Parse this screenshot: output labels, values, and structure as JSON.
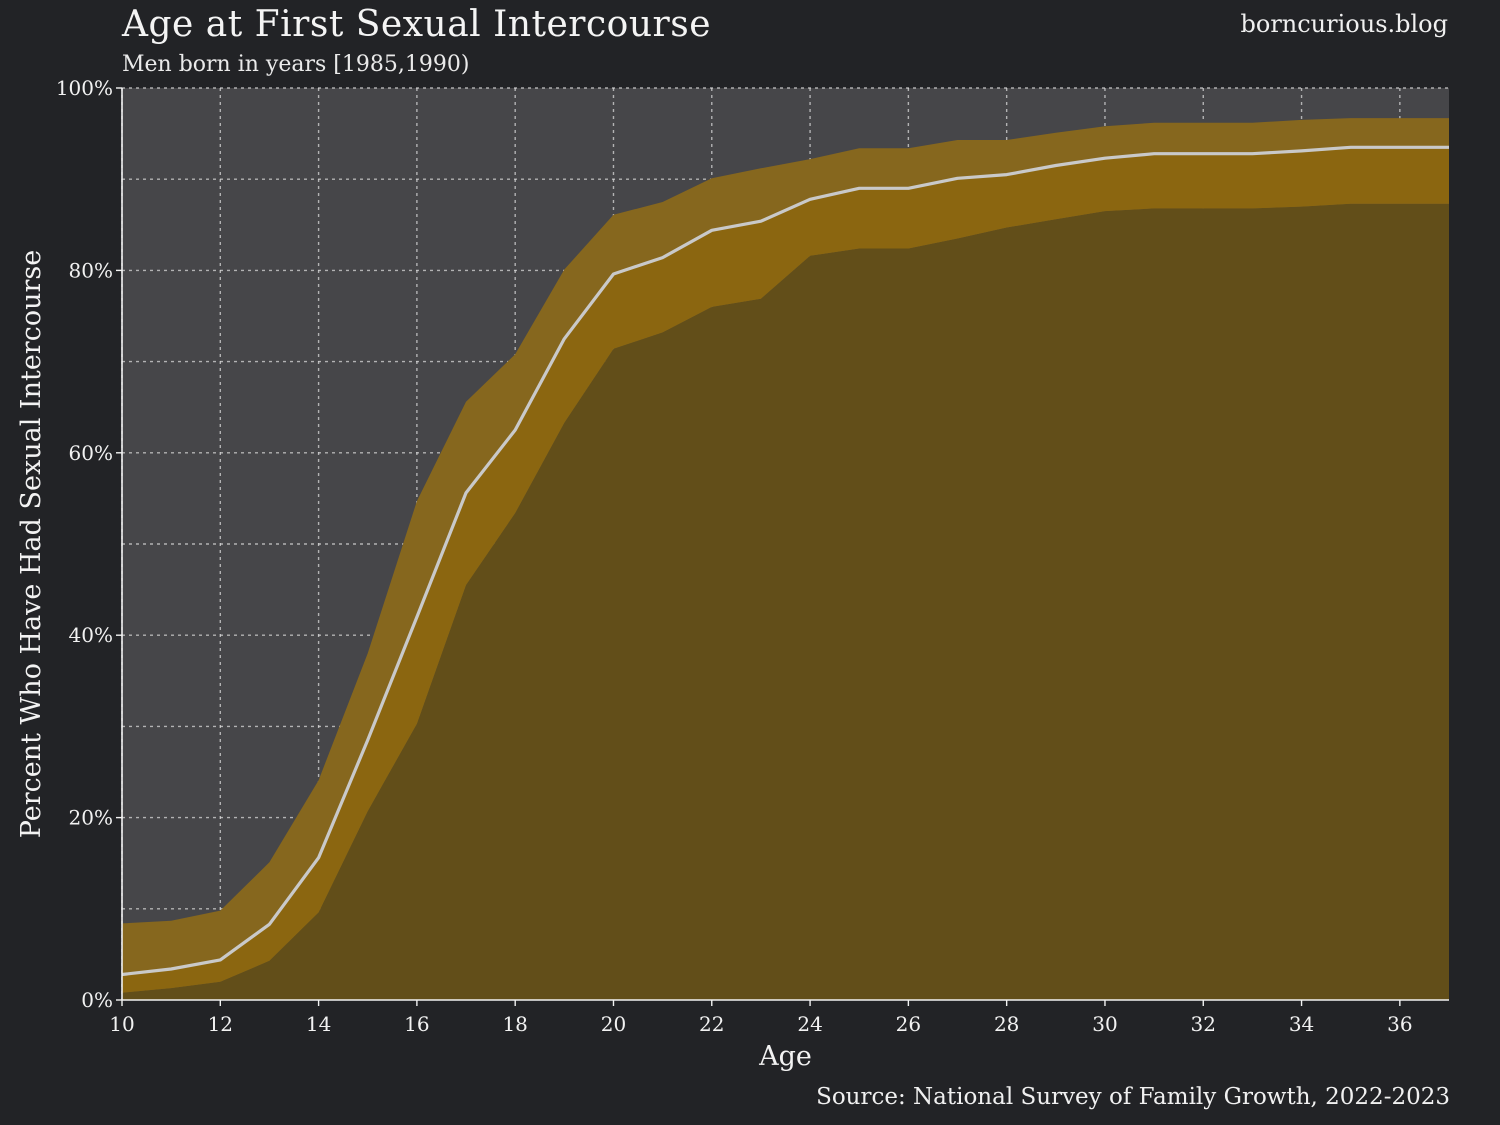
{
  "header": {
    "title": "Age at First Sexual Intercourse",
    "subtitle": "Men born in years [1985,1990)",
    "brand": "borncurious.blog",
    "source": "Source: National Survey of Family Growth, 2022-2023"
  },
  "colors": {
    "background": "#222326",
    "plot_bg": "#464649",
    "outer_band": "#86671e",
    "inner_band": "#8b6610",
    "below_band": "#624e19",
    "line": "#c9c9c9",
    "grid": "#d8d8d8"
  },
  "chart_data": {
    "type": "area",
    "title": "Age at First Sexual Intercourse",
    "subtitle": "Men born in years [1985,1990)",
    "xlabel": "Age",
    "ylabel": "Percent Who Have Had Sexual Intercourse",
    "xlim": [
      10,
      37
    ],
    "ylim": [
      0,
      100
    ],
    "x_ticks": [
      10,
      12,
      14,
      16,
      18,
      20,
      22,
      24,
      26,
      28,
      30,
      32,
      34,
      36
    ],
    "y_ticks": [
      0,
      20,
      40,
      60,
      80,
      100
    ],
    "y_tick_labels": [
      "0%",
      "20%",
      "40%",
      "60%",
      "80%",
      "100%"
    ],
    "grid": true,
    "x": [
      10,
      11,
      12,
      13,
      14,
      15,
      16,
      17,
      18,
      19,
      20,
      21,
      22,
      23,
      24,
      25,
      26,
      27,
      28,
      29,
      30,
      31,
      32,
      33,
      34,
      35,
      36,
      37
    ],
    "estimate": [
      2.8,
      3.4,
      4.4,
      8.3,
      15.6,
      28.5,
      42.0,
      55.6,
      62.5,
      72.5,
      79.6,
      81.4,
      84.4,
      85.4,
      87.8,
      89.0,
      89.0,
      90.1,
      90.5,
      91.5,
      92.3,
      92.8,
      92.8,
      92.8,
      93.1,
      93.5,
      93.5,
      93.5
    ],
    "inner_low": [
      0.8,
      1.3,
      2.0,
      4.3,
      9.6,
      20.7,
      30.3,
      45.5,
      53.4,
      63.3,
      71.4,
      73.2,
      76.0,
      76.9,
      81.6,
      82.4,
      82.4,
      83.5,
      84.7,
      85.6,
      86.5,
      86.8,
      86.8,
      86.8,
      87.0,
      87.3,
      87.3,
      87.3
    ],
    "inner_high": [
      2.8,
      3.4,
      4.4,
      8.3,
      15.6,
      28.5,
      42.0,
      55.6,
      62.5,
      72.5,
      79.6,
      81.4,
      84.4,
      85.4,
      87.8,
      89.0,
      89.0,
      90.1,
      90.5,
      91.5,
      92.3,
      92.8,
      92.8,
      92.8,
      93.1,
      93.5,
      93.5,
      93.5
    ],
    "outer_low": [
      0.8,
      1.3,
      2.0,
      4.3,
      9.6,
      20.7,
      30.3,
      45.5,
      53.4,
      63.3,
      71.4,
      73.2,
      76.0,
      76.9,
      81.6,
      82.4,
      82.4,
      83.5,
      84.7,
      85.6,
      86.5,
      86.8,
      86.8,
      86.8,
      87.0,
      87.3,
      87.3,
      87.3
    ],
    "outer_high": [
      8.4,
      8.7,
      9.8,
      15.1,
      24.1,
      38.0,
      54.7,
      65.6,
      70.8,
      80.1,
      86.1,
      87.5,
      90.1,
      91.2,
      92.2,
      93.4,
      93.4,
      94.3,
      94.3,
      95.1,
      95.8,
      96.2,
      96.2,
      96.2,
      96.5,
      96.7,
      96.7,
      96.7
    ]
  }
}
